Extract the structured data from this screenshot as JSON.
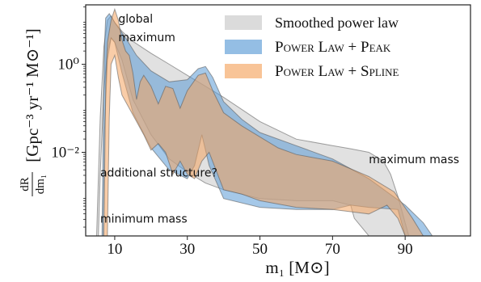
{
  "chart_data": {
    "type": "area",
    "xlabel": "m₁ [M⊙]",
    "ylabel": "dR/dm₁ [Gpc⁻³ yr⁻¹ M⊙⁻¹]",
    "ylabel_parts": {
      "fraction_top": "dR",
      "fraction_bottom": "dm₁",
      "units": "[Gpc⁻³ yr⁻¹ M⊙⁻¹]"
    },
    "xlim": [
      2,
      108
    ],
    "ylim_log10": [
      -3.9,
      1.35
    ],
    "yscale": "log",
    "x_ticks": [
      10,
      30,
      50,
      70,
      90
    ],
    "x_tick_labels": [
      "10",
      "30",
      "50",
      "70",
      "90"
    ],
    "y_ticks_log10": [
      0,
      -2
    ],
    "y_tick_labels": [
      "10⁰",
      "10⁻²"
    ],
    "legend": {
      "placement": "top-right",
      "entries": [
        "Smoothed power law",
        "Power Law + Peak",
        "Power Law + Spline"
      ]
    },
    "annotations": [
      {
        "text": "global",
        "x": 11,
        "log10_y": 0.95
      },
      {
        "text": "maximum",
        "x": 11,
        "log10_y": 0.52
      },
      {
        "text": "additional structure?",
        "x": 6,
        "log10_y": -2.55
      },
      {
        "text": "maximum mass",
        "x": 80,
        "log10_y": -2.25
      },
      {
        "text": "minimum mass",
        "x": 6,
        "log10_y": -3.6
      }
    ],
    "series": [
      {
        "name": "Smoothed power law",
        "color": "#c8c8c8",
        "upper": [
          [
            5,
            -3.9
          ],
          [
            6,
            -1.2
          ],
          [
            7,
            0.4
          ],
          [
            8,
            1.0
          ],
          [
            9,
            1.1
          ],
          [
            10,
            0.95
          ],
          [
            12,
            0.75
          ],
          [
            15,
            0.52
          ],
          [
            20,
            0.25
          ],
          [
            25,
            0.0
          ],
          [
            30,
            -0.25
          ],
          [
            35,
            -0.5
          ],
          [
            40,
            -0.75
          ],
          [
            50,
            -1.3
          ],
          [
            60,
            -1.7
          ],
          [
            70,
            -1.85
          ],
          [
            75,
            -1.92
          ],
          [
            80,
            -2.0
          ],
          [
            84,
            -2.2
          ],
          [
            86,
            -2.5
          ],
          [
            88,
            -3.0
          ],
          [
            90,
            -3.6
          ],
          [
            91,
            -3.9
          ]
        ],
        "lower": [
          [
            91,
            -3.9
          ],
          [
            80,
            -3.9
          ],
          [
            76,
            -3.5
          ],
          [
            75,
            -3.2
          ],
          [
            70,
            -3.1
          ],
          [
            60,
            -3.1
          ],
          [
            50,
            -3.05
          ],
          [
            40,
            -2.85
          ],
          [
            35,
            -2.7
          ],
          [
            30,
            -2.45
          ],
          [
            25,
            -2.15
          ],
          [
            20,
            -1.6
          ],
          [
            15,
            -0.8
          ],
          [
            12,
            0.1
          ],
          [
            10,
            0.5
          ],
          [
            9,
            0.6
          ],
          [
            8,
            0.3
          ],
          [
            7,
            -0.6
          ],
          [
            6,
            -2.5
          ],
          [
            5.5,
            -3.9
          ]
        ]
      },
      {
        "name": "Power Law + Peak",
        "color": "#5b9bd5",
        "upper": [
          [
            6.5,
            -3.9
          ],
          [
            6.8,
            -1.5
          ],
          [
            7.2,
            0.5
          ],
          [
            7.5,
            1.05
          ],
          [
            8.5,
            1.15
          ],
          [
            10,
            0.95
          ],
          [
            13,
            0.6
          ],
          [
            16,
            0.2
          ],
          [
            20,
            -0.15
          ],
          [
            25,
            -0.4
          ],
          [
            30,
            -0.35
          ],
          [
            33,
            -0.1
          ],
          [
            35,
            -0.05
          ],
          [
            37,
            -0.3
          ],
          [
            40,
            -0.85
          ],
          [
            45,
            -1.25
          ],
          [
            50,
            -1.55
          ],
          [
            60,
            -1.85
          ],
          [
            70,
            -2.15
          ],
          [
            80,
            -2.6
          ],
          [
            90,
            -3.2
          ],
          [
            95,
            -3.6
          ],
          [
            97.5,
            -3.9
          ]
        ],
        "lower": [
          [
            97.5,
            -3.9
          ],
          [
            90,
            -3.9
          ],
          [
            88,
            -3.3
          ],
          [
            80,
            -3.25
          ],
          [
            75,
            -3.2
          ],
          [
            70,
            -3.3
          ],
          [
            60,
            -3.3
          ],
          [
            50,
            -3.25
          ],
          [
            40,
            -3.05
          ],
          [
            36,
            -2.3
          ],
          [
            34,
            -1.6
          ],
          [
            32,
            -2.3
          ],
          [
            30,
            -2.6
          ],
          [
            25,
            -2.4
          ],
          [
            20,
            -1.9
          ],
          [
            15,
            -1.1
          ],
          [
            12,
            -0.2
          ],
          [
            10,
            0.5
          ],
          [
            9,
            0.6
          ],
          [
            8,
            0.1
          ],
          [
            7.2,
            -1.5
          ],
          [
            6.8,
            -3.9
          ]
        ]
      },
      {
        "name": "Power Law + Spline",
        "color": "#f4a460",
        "upper": [
          [
            7,
            -3.9
          ],
          [
            7.5,
            -0.5
          ],
          [
            8,
            0.5
          ],
          [
            9,
            1.0
          ],
          [
            10,
            1.25
          ],
          [
            11,
            1.0
          ],
          [
            12,
            0.55
          ],
          [
            13,
            0.3
          ],
          [
            14,
            0.2
          ],
          [
            15,
            -0.2
          ],
          [
            16,
            -0.8
          ],
          [
            17,
            -0.4
          ],
          [
            18,
            -0.25
          ],
          [
            20,
            -0.5
          ],
          [
            22,
            -0.9
          ],
          [
            24,
            -0.5
          ],
          [
            26,
            -0.55
          ],
          [
            28,
            -1.0
          ],
          [
            30,
            -0.6
          ],
          [
            33,
            -0.25
          ],
          [
            35,
            -0.2
          ],
          [
            37,
            -0.6
          ],
          [
            40,
            -1.1
          ],
          [
            45,
            -1.4
          ],
          [
            50,
            -1.65
          ],
          [
            55,
            -1.9
          ],
          [
            60,
            -2.05
          ],
          [
            70,
            -2.2
          ],
          [
            80,
            -2.55
          ],
          [
            87,
            -2.9
          ],
          [
            92,
            -3.5
          ],
          [
            95,
            -3.9
          ]
        ],
        "lower": [
          [
            95,
            -3.9
          ],
          [
            90,
            -3.9
          ],
          [
            88,
            -3.5
          ],
          [
            85,
            -3.2
          ],
          [
            80,
            -3.4
          ],
          [
            75,
            -3.35
          ],
          [
            70,
            -3.3
          ],
          [
            60,
            -3.25
          ],
          [
            50,
            -3.1
          ],
          [
            45,
            -2.95
          ],
          [
            40,
            -2.85
          ],
          [
            36,
            -2.0
          ],
          [
            34,
            -2.2
          ],
          [
            32,
            -2.6
          ],
          [
            30,
            -2.5
          ],
          [
            28,
            -2.2
          ],
          [
            26,
            -2.5
          ],
          [
            24,
            -2.0
          ],
          [
            22,
            -1.8
          ],
          [
            20,
            -1.95
          ],
          [
            18,
            -1.6
          ],
          [
            16,
            -1.3
          ],
          [
            14,
            -1.0
          ],
          [
            12,
            -0.7
          ],
          [
            11,
            -0.3
          ],
          [
            10,
            0.2
          ],
          [
            9,
            0.0
          ],
          [
            8.5,
            -1.2
          ],
          [
            8,
            -3.9
          ]
        ]
      }
    ]
  }
}
